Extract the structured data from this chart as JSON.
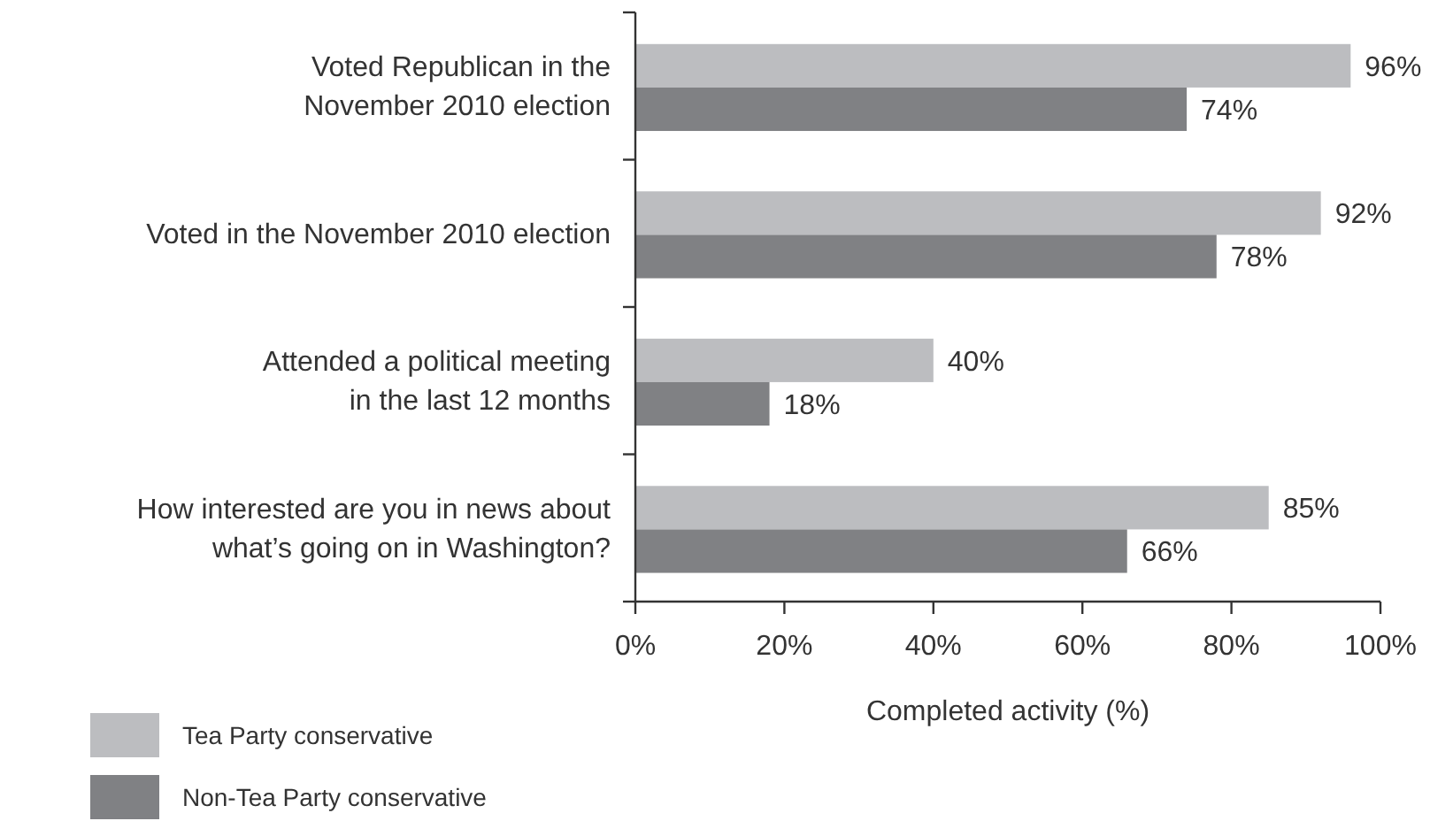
{
  "chart_data": {
    "type": "bar",
    "orientation": "horizontal",
    "xlabel": "Completed activity (%)",
    "categories": [
      "Voted Republican in the\nNovember 2010 election",
      "Voted in the November 2010 election",
      "Attended a political meeting\nin the last 12 months",
      "How interested are you in news about\nwhat’s going on in Washington?"
    ],
    "series": [
      {
        "name": "Tea Party conservative",
        "color": "#bcbdc0",
        "values": [
          96,
          92,
          40,
          85
        ],
        "value_labels": [
          "96%",
          "92%",
          "40%",
          "85%"
        ]
      },
      {
        "name": "Non-Tea Party conservative",
        "color": "#808184",
        "values": [
          74,
          78,
          18,
          66
        ],
        "value_labels": [
          "74%",
          "78%",
          "18%",
          "66%"
        ]
      }
    ],
    "xlim": [
      0,
      100
    ],
    "xticks": [
      {
        "value": 0,
        "label": "0%"
      },
      {
        "value": 20,
        "label": "20%"
      },
      {
        "value": 40,
        "label": "40%"
      },
      {
        "value": 60,
        "label": "60%"
      },
      {
        "value": 80,
        "label": "80%"
      },
      {
        "value": 100,
        "label": "100%"
      }
    ],
    "legend": "bottom left",
    "grid": false
  }
}
